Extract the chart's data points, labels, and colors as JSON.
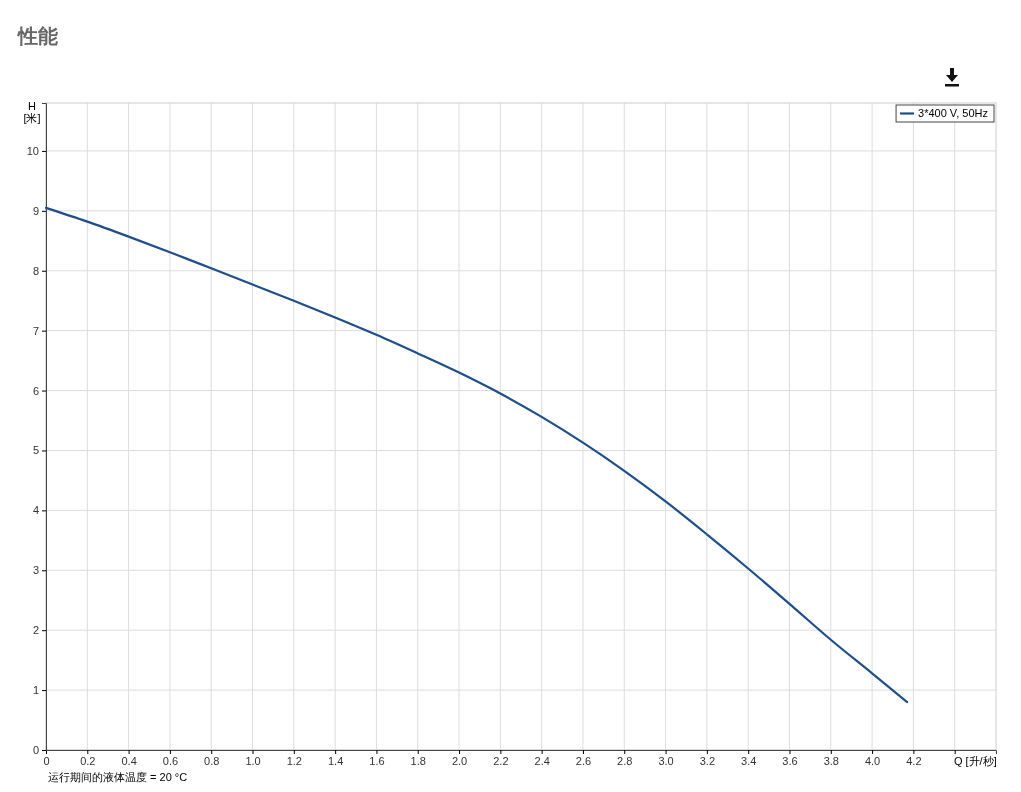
{
  "chart_data": {
    "type": "line",
    "title": "性能",
    "xlabel": "Q [升/秒]",
    "ylabel": "H\n[米]",
    "annotations": [
      "运行期间的液体温度 = 20 °C"
    ],
    "xlim": [
      0,
      4.6
    ],
    "ylim": [
      0,
      10.8
    ],
    "xticks": [
      0,
      0.2,
      0.4,
      0.6,
      0.8,
      {
        "value": 1,
        "label": "1.0"
      },
      1.2,
      1.4,
      1.6,
      1.8,
      {
        "value": 2,
        "label": "2.0"
      },
      2.2,
      2.4,
      2.6,
      2.8,
      {
        "value": 3,
        "label": "3.0"
      },
      3.2,
      3.4,
      3.6,
      3.8,
      {
        "value": 4,
        "label": "4.0"
      },
      4.2,
      {
        "value": 4.4,
        "label": null
      }
    ],
    "yticks": [
      0,
      1,
      2,
      3,
      4,
      5,
      6,
      7,
      8,
      9,
      10
    ],
    "grid": true,
    "legend": "top right",
    "marker": "none",
    "line_style": "solid",
    "series": [
      {
        "name": "3*400 V, 50Hz",
        "color": "#1f4e8c",
        "x": [
          0,
          0.2,
          0.4,
          0.6,
          0.8,
          1.0,
          1.2,
          1.4,
          1.6,
          1.8,
          2.0,
          2.2,
          2.4,
          2.6,
          2.8,
          3.0,
          3.2,
          3.4,
          3.6,
          3.8,
          4.0,
          4.17
        ],
        "values": [
          9.05,
          8.82,
          8.57,
          8.31,
          8.04,
          7.77,
          7.5,
          7.22,
          6.93,
          6.62,
          6.3,
          5.95,
          5.56,
          5.13,
          4.66,
          4.15,
          3.6,
          3.03,
          2.44,
          1.84,
          1.28,
          0.8
        ]
      }
    ]
  }
}
